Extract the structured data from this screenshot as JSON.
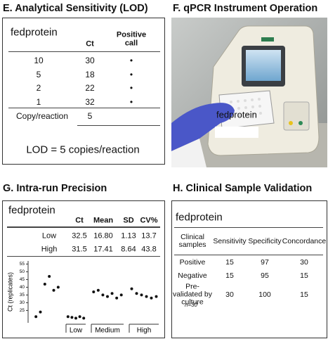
{
  "panels": {
    "e": {
      "title": "E. Analytical Sensitivity (LOD)",
      "label": "fedprotein",
      "header": [
        "Ct",
        "Positive call"
      ],
      "rows": [
        [
          "10",
          "30",
          "•"
        ],
        [
          "5",
          "18",
          "•"
        ],
        [
          "2",
          "22",
          "•"
        ],
        [
          "1",
          "32",
          "•"
        ]
      ],
      "footer": [
        "Copy/reaction",
        "5"
      ],
      "lod": "LOD = 5 copies/reaction"
    },
    "f": {
      "title": "F. qPCR Instrument Operation",
      "label": "fedprotein"
    },
    "g": {
      "title": "G. Intra-run Precision",
      "label": "fedprotein",
      "header": [
        "Ct",
        "Mean",
        "SD",
        "CV%"
      ],
      "rows": [
        [
          "Low",
          "32.5",
          "16.80",
          "1.13",
          "13.7"
        ],
        [
          "High",
          "31.5",
          "17.41",
          "8.64",
          "43.8"
        ]
      ]
    },
    "h": {
      "title": "H. Clinical Sample Validation",
      "label": "fedprotein",
      "header": [
        "Clinical samples",
        "Sensitivity",
        "Specificity",
        "Concordance"
      ],
      "rows": [
        [
          "Positive",
          "15",
          "97",
          "30"
        ],
        [
          "Negative",
          "15",
          "95",
          "15"
        ],
        [
          "Pre-validated by culture",
          "30",
          "100",
          "15"
        ]
      ],
      "note": "n=30"
    }
  },
  "chart_data": {
    "type": "strip",
    "y_label": "Ct (replicates)",
    "categories": [
      null,
      "Low",
      "Medium",
      "High"
    ],
    "values": [
      [
        21,
        24,
        42,
        47,
        38,
        40
      ],
      [
        21,
        20.5,
        20,
        21,
        20
      ],
      [
        37,
        38,
        35,
        34,
        36,
        33,
        35
      ],
      [
        39,
        36,
        35,
        34,
        33,
        34
      ]
    ],
    "color": "#111",
    "ylim": [
      17,
      57
    ],
    "yticks": [
      25,
      30,
      35,
      40,
      45,
      50,
      55
    ]
  }
}
